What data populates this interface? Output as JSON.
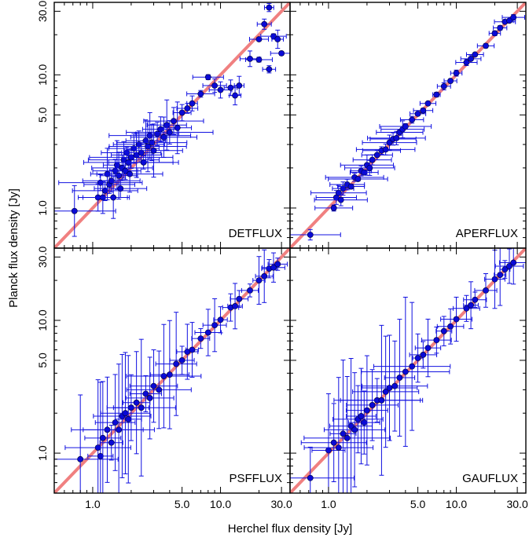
{
  "figure": {
    "ylabel": "Planck flux density [Jy]",
    "xlabel": "Herchel flux density [Jy]"
  },
  "colors": {
    "points": "#0a0ad6",
    "errorbars": "#1010e0",
    "one_to_one_line": "#f08080",
    "frame": "#000000"
  },
  "axes": {
    "scale": "log",
    "xlim": [
      0.5,
      35.0
    ],
    "ylim": [
      0.5,
      35.0
    ],
    "x_tick_labels": [
      "1.0",
      "5.0",
      "10.0",
      "30.0"
    ],
    "y_tick_labels": [
      "1.0",
      "5.0",
      "10.0",
      "30.0"
    ]
  },
  "chart_data": [
    {
      "type": "scatter",
      "panel": "DETFLUX",
      "label": "DETFLUX",
      "xscale": "log",
      "yscale": "log",
      "xlim": [
        0.5,
        35.0
      ],
      "ylim": [
        0.5,
        35.0
      ],
      "reference_line": "y = x",
      "points": [
        [
          0.72,
          0.95
        ],
        [
          1.1,
          1.2
        ],
        [
          1.15,
          1.55
        ],
        [
          1.2,
          1.2
        ],
        [
          1.25,
          1.35
        ],
        [
          1.3,
          1.8
        ],
        [
          1.35,
          1.5
        ],
        [
          1.4,
          1.6
        ],
        [
          1.45,
          1.2
        ],
        [
          1.5,
          1.9
        ],
        [
          1.55,
          2.1
        ],
        [
          1.6,
          1.75
        ],
        [
          1.65,
          1.4
        ],
        [
          1.7,
          2.0
        ],
        [
          1.75,
          2.3
        ],
        [
          1.8,
          1.9
        ],
        [
          1.85,
          2.6
        ],
        [
          1.9,
          2.2
        ],
        [
          1.95,
          1.8
        ],
        [
          2.0,
          2.4
        ],
        [
          2.1,
          2.8
        ],
        [
          2.2,
          2.5
        ],
        [
          2.3,
          3.0
        ],
        [
          2.4,
          2.6
        ],
        [
          2.5,
          2.2
        ],
        [
          2.6,
          3.2
        ],
        [
          2.7,
          2.9
        ],
        [
          2.8,
          3.5
        ],
        [
          2.9,
          3.1
        ],
        [
          3.0,
          2.7
        ],
        [
          3.2,
          3.6
        ],
        [
          3.4,
          3.9
        ],
        [
          3.6,
          3.4
        ],
        [
          3.8,
          4.2
        ],
        [
          4.0,
          3.7
        ],
        [
          4.3,
          4.5
        ],
        [
          4.6,
          4.0
        ],
        [
          5.0,
          5.2
        ],
        [
          5.5,
          5.6
        ],
        [
          6.0,
          6.1
        ],
        [
          7.0,
          7.2
        ],
        [
          8.0,
          9.6
        ],
        [
          9.0,
          8.3
        ],
        [
          10.0,
          7.7
        ],
        [
          12.0,
          8.0
        ],
        [
          13.0,
          7.0
        ],
        [
          14.0,
          8.3
        ],
        [
          17.0,
          13.2
        ],
        [
          20.0,
          13.0
        ],
        [
          20.0,
          18.5
        ],
        [
          22.0,
          24.0
        ],
        [
          24.0,
          32.0
        ],
        [
          24.0,
          11.0
        ],
        [
          26.0,
          19.5
        ],
        [
          28.0,
          18.5
        ],
        [
          30.0,
          14.5
        ]
      ]
    },
    {
      "type": "scatter",
      "panel": "APERFLUX",
      "label": "APERFLUX",
      "xscale": "log",
      "yscale": "log",
      "xlim": [
        0.5,
        35.0
      ],
      "ylim": [
        0.5,
        35.0
      ],
      "reference_line": "y = x",
      "points": [
        [
          0.72,
          0.63
        ],
        [
          1.1,
          1.0
        ],
        [
          1.15,
          1.2
        ],
        [
          1.2,
          1.3
        ],
        [
          1.25,
          1.15
        ],
        [
          1.3,
          1.4
        ],
        [
          1.4,
          1.5
        ],
        [
          1.5,
          1.45
        ],
        [
          1.6,
          1.7
        ],
        [
          1.7,
          1.65
        ],
        [
          1.8,
          1.9
        ],
        [
          1.9,
          1.85
        ],
        [
          2.0,
          2.1
        ],
        [
          2.1,
          2.0
        ],
        [
          2.2,
          2.3
        ],
        [
          2.4,
          2.5
        ],
        [
          2.6,
          2.7
        ],
        [
          2.8,
          2.75
        ],
        [
          3.0,
          3.1
        ],
        [
          3.2,
          3.3
        ],
        [
          3.4,
          3.35
        ],
        [
          3.6,
          3.7
        ],
        [
          3.8,
          3.9
        ],
        [
          4.0,
          4.1
        ],
        [
          4.5,
          4.6
        ],
        [
          5.0,
          5.1
        ],
        [
          5.5,
          5.4
        ],
        [
          6.0,
          6.1
        ],
        [
          7.0,
          7.1
        ],
        [
          8.0,
          8.2
        ],
        [
          9.0,
          9.0
        ],
        [
          10.0,
          10.3
        ],
        [
          12.0,
          12.4
        ],
        [
          13.0,
          13.2
        ],
        [
          14.0,
          14.2
        ],
        [
          17.0,
          16.5
        ],
        [
          20.0,
          20.5
        ],
        [
          22.0,
          22.5
        ],
        [
          24.0,
          25.0
        ],
        [
          26.0,
          25.5
        ],
        [
          28.0,
          27.0
        ]
      ]
    },
    {
      "type": "scatter",
      "panel": "PSFFLUX",
      "label": "PSFFLUX",
      "xscale": "log",
      "yscale": "log",
      "xlim": [
        0.5,
        35.0
      ],
      "ylim": [
        0.5,
        35.0
      ],
      "reference_line": "y = x",
      "points": [
        [
          0.8,
          0.9
        ],
        [
          1.1,
          1.1
        ],
        [
          1.15,
          0.95
        ],
        [
          1.2,
          1.3
        ],
        [
          1.3,
          1.5
        ],
        [
          1.4,
          1.2
        ],
        [
          1.5,
          1.7
        ],
        [
          1.6,
          1.5
        ],
        [
          1.7,
          1.9
        ],
        [
          1.8,
          2.0
        ],
        [
          1.9,
          1.8
        ],
        [
          2.0,
          2.2
        ],
        [
          2.2,
          2.4
        ],
        [
          2.4,
          2.2
        ],
        [
          2.6,
          2.8
        ],
        [
          2.8,
          2.6
        ],
        [
          3.0,
          3.2
        ],
        [
          3.3,
          3.0
        ],
        [
          3.6,
          3.8
        ],
        [
          4.0,
          3.9
        ],
        [
          4.5,
          4.7
        ],
        [
          5.0,
          5.0
        ],
        [
          5.5,
          5.8
        ],
        [
          6.0,
          6.0
        ],
        [
          7.0,
          7.3
        ],
        [
          8.0,
          8.1
        ],
        [
          9.0,
          9.2
        ],
        [
          10.0,
          10.1
        ],
        [
          12.0,
          12.5
        ],
        [
          13.0,
          12.8
        ],
        [
          14.0,
          14.5
        ],
        [
          17.0,
          16.8
        ],
        [
          20.0,
          20.0
        ],
        [
          22.0,
          21.5
        ],
        [
          24.0,
          24.5
        ],
        [
          26.0,
          25.0
        ],
        [
          28.0,
          26.5
        ]
      ]
    },
    {
      "type": "scatter",
      "panel": "GAUFLUX",
      "label": "GAUFLUX",
      "xscale": "log",
      "yscale": "log",
      "xlim": [
        0.5,
        35.0
      ],
      "ylim": [
        0.5,
        35.0
      ],
      "reference_line": "y = x",
      "points": [
        [
          0.72,
          0.65
        ],
        [
          1.0,
          1.05
        ],
        [
          1.1,
          1.2
        ],
        [
          1.2,
          1.1
        ],
        [
          1.3,
          1.4
        ],
        [
          1.4,
          1.3
        ],
        [
          1.5,
          1.6
        ],
        [
          1.6,
          1.5
        ],
        [
          1.7,
          1.8
        ],
        [
          1.8,
          1.9
        ],
        [
          1.9,
          1.7
        ],
        [
          2.0,
          2.1
        ],
        [
          2.2,
          2.3
        ],
        [
          2.4,
          2.5
        ],
        [
          2.6,
          2.5
        ],
        [
          2.8,
          2.9
        ],
        [
          3.0,
          3.1
        ],
        [
          3.3,
          3.2
        ],
        [
          3.6,
          3.7
        ],
        [
          4.0,
          4.1
        ],
        [
          4.5,
          4.5
        ],
        [
          5.0,
          5.2
        ],
        [
          5.5,
          5.5
        ],
        [
          6.0,
          6.2
        ],
        [
          7.0,
          7.1
        ],
        [
          8.0,
          8.3
        ],
        [
          9.0,
          9.0
        ],
        [
          10.0,
          10.2
        ],
        [
          12.0,
          12.3
        ],
        [
          13.0,
          13.0
        ],
        [
          14.0,
          14.3
        ],
        [
          17.0,
          16.8
        ],
        [
          20.0,
          20.4
        ],
        [
          22.0,
          22.0
        ],
        [
          24.0,
          24.2
        ],
        [
          26.0,
          25.6
        ],
        [
          28.0,
          27.2
        ]
      ]
    }
  ]
}
